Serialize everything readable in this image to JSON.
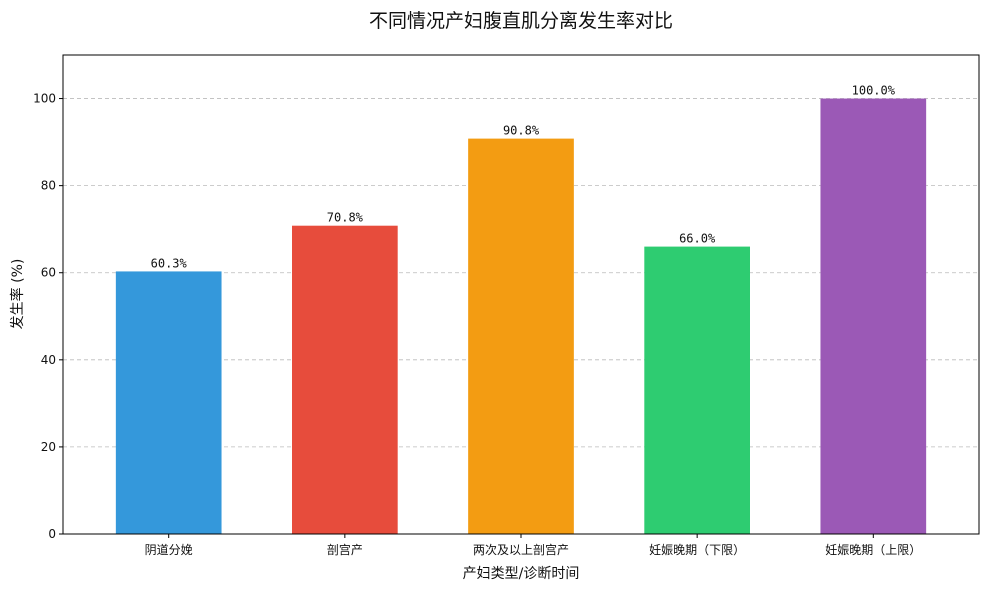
{
  "chart_data": {
    "type": "bar",
    "title": "不同情况产妇腹直肌分离发生率对比",
    "xlabel": "产妇类型/诊断时间",
    "ylabel": "发生率 (%)",
    "categories": [
      "阴道分娩",
      "剖宫产",
      "两次及以上剖宫产",
      "妊娠晚期（下限）",
      "妊娠晚期（上限）"
    ],
    "values": [
      60.3,
      70.8,
      90.8,
      66.0,
      100.0
    ],
    "data_labels": [
      "60.3%",
      "70.8%",
      "90.8%",
      "66.0%",
      "100.0%"
    ],
    "colors": [
      "#3498db",
      "#e74c3c",
      "#f39c12",
      "#2ecc71",
      "#9b59b6"
    ],
    "ylim": [
      0,
      110
    ],
    "yticks": [
      0,
      20,
      40,
      60,
      80,
      100
    ],
    "grid": "y-dashed",
    "legend": "none"
  }
}
